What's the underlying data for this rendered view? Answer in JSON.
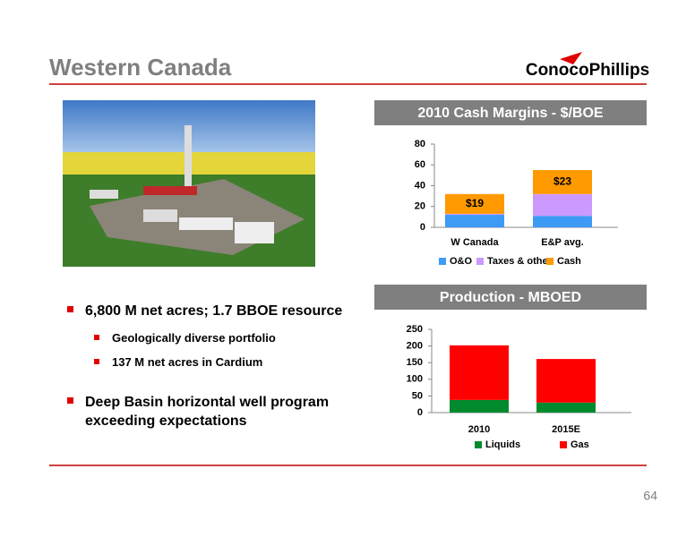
{
  "title": "Western Canada",
  "logo": "ConocoPhillips",
  "bullets": [
    {
      "text": "6,800 M net acres; 1.7 BBOE resource",
      "sub": [
        "Geologically diverse portfolio",
        "137 M net acres in Cardium"
      ]
    },
    {
      "text": "Deep Basin horizontal well program exceeding expectations",
      "sub": []
    }
  ],
  "page_number": "64",
  "chart_data": [
    {
      "type": "stacked_bar",
      "title": "2010 Cash Margins - $/BOE",
      "categories": [
        "W Canada",
        "E&P avg."
      ],
      "series": [
        {
          "name": "O&O",
          "color": "#3d9bf5",
          "values": [
            12,
            11
          ]
        },
        {
          "name": "Taxes & other",
          "color": "#cc99ff",
          "values": [
            1,
            21
          ]
        },
        {
          "name": "Cash",
          "color": "#ff9900",
          "values": [
            19,
            23
          ],
          "value_labels": [
            "$19",
            "$23"
          ]
        }
      ],
      "ylim": [
        0,
        80
      ],
      "yticks": [
        0,
        20,
        40,
        60,
        80
      ],
      "legend": "bottom"
    },
    {
      "type": "stacked_bar",
      "title": "Production - MBOED",
      "categories": [
        "2010",
        "2015E"
      ],
      "series": [
        {
          "name": "Liquids",
          "color": "#008a2e",
          "values": [
            38,
            30
          ]
        },
        {
          "name": "Gas",
          "color": "#ff0000",
          "values": [
            164,
            131
          ]
        }
      ],
      "ylim": [
        0,
        250
      ],
      "yticks": [
        0,
        50,
        100,
        150,
        200,
        250
      ],
      "legend": "bottom"
    }
  ]
}
